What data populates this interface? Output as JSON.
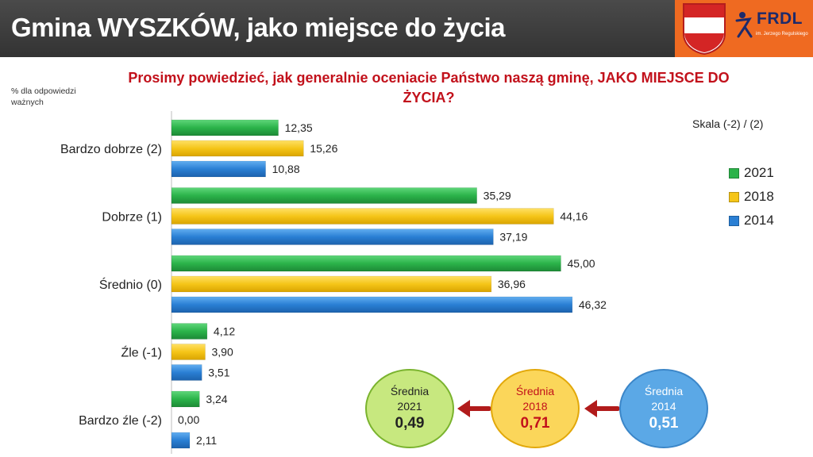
{
  "header": {
    "title": "Gmina WYSZKÓW, jako miejsce do życia",
    "logo_text": "FRDL",
    "logo_subtext": "im. Jerzego Regulskiego"
  },
  "subtitle": "Prosimy powiedzieć, jak generalnie oceniacie Państwo naszą gminę, JAKO MIEJSCE DO ŻYCIA?",
  "axis_note": "% dla odpowiedzi ważnych",
  "scale_note": "Skala (-2) / (2)",
  "colors": {
    "2021": "#2bb34a",
    "2018": "#f5c518",
    "2014": "#2a7fd4",
    "header_bg": "#3a3a3a",
    "accent_orange": "#ef6a21",
    "subtitle_red": "#c2111b"
  },
  "chart_data": {
    "type": "bar",
    "orientation": "horizontal",
    "categories": [
      "Bardzo dobrze (2)",
      "Dobrze (1)",
      "Średnio (0)",
      "Źle (-1)",
      "Bardzo źle (-2)"
    ],
    "series": [
      {
        "name": "2021",
        "values": [
          12.35,
          35.29,
          45.0,
          4.12,
          3.24
        ],
        "labels": [
          "12,35",
          "35,29",
          "45,00",
          "4,12",
          "3,24"
        ]
      },
      {
        "name": "2018",
        "values": [
          15.26,
          44.16,
          36.96,
          3.9,
          0.0
        ],
        "labels": [
          "15,26",
          "44,16",
          "36,96",
          "3,90",
          "0,00"
        ]
      },
      {
        "name": "2014",
        "values": [
          10.88,
          37.19,
          46.32,
          3.51,
          2.11
        ],
        "labels": [
          "10,88",
          "37,19",
          "46,32",
          "3,51",
          "2,11"
        ]
      }
    ],
    "xlim": [
      0,
      50
    ],
    "grid": false,
    "legend": "right"
  },
  "averages": [
    {
      "title": "Średnia",
      "year": "2021",
      "value": "0,49"
    },
    {
      "title": "Średnia",
      "year": "2018",
      "value": "0,71"
    },
    {
      "title": "Średnia",
      "year": "2014",
      "value": "0,51"
    }
  ]
}
